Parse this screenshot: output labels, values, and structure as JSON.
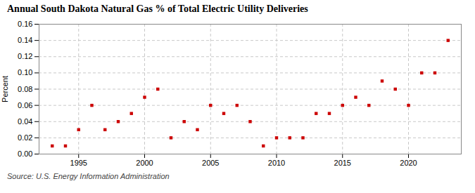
{
  "chart_data": {
    "type": "scatter",
    "title": "Annual South Dakota Natural Gas % of Total Electric Utility Deliveries",
    "ylabel": "Percent",
    "source": "Source: U.S. Energy Information Administration",
    "x": [
      1993,
      1994,
      1995,
      1996,
      1997,
      1998,
      1999,
      2000,
      2001,
      2002,
      2003,
      2004,
      2005,
      2006,
      2007,
      2008,
      2009,
      2010,
      2011,
      2012,
      2013,
      2014,
      2015,
      2016,
      2017,
      2018,
      2019,
      2020,
      2021,
      2022,
      2023
    ],
    "values": [
      0.01,
      0.01,
      0.03,
      0.06,
      0.03,
      0.04,
      0.05,
      0.07,
      0.08,
      0.02,
      0.04,
      0.03,
      0.06,
      0.05,
      0.06,
      0.04,
      0.01,
      0.02,
      0.02,
      0.02,
      0.05,
      0.05,
      0.06,
      0.07,
      0.06,
      0.09,
      0.08,
      0.06,
      0.1,
      0.1,
      0.14
    ],
    "color": "#cc0000",
    "marker": "square",
    "xlim": [
      1992,
      2024
    ],
    "xticks": [
      1995,
      2000,
      2005,
      2010,
      2015,
      2020
    ],
    "ylim": [
      0.0,
      0.16
    ],
    "yticks": [
      {
        "value": 0.0,
        "label": "0.00"
      },
      {
        "value": 0.02,
        "label": "0.02"
      },
      {
        "value": 0.04,
        "label": "0.04"
      },
      {
        "value": 0.06,
        "label": "0.06"
      },
      {
        "value": 0.08,
        "label": "0.08"
      },
      {
        "value": 0.1,
        "label": "0.10"
      },
      {
        "value": 0.12,
        "label": "0.12"
      },
      {
        "value": 0.14,
        "label": "0.14"
      },
      {
        "value": 0.16,
        "label": "0.16"
      }
    ],
    "grid": true
  }
}
